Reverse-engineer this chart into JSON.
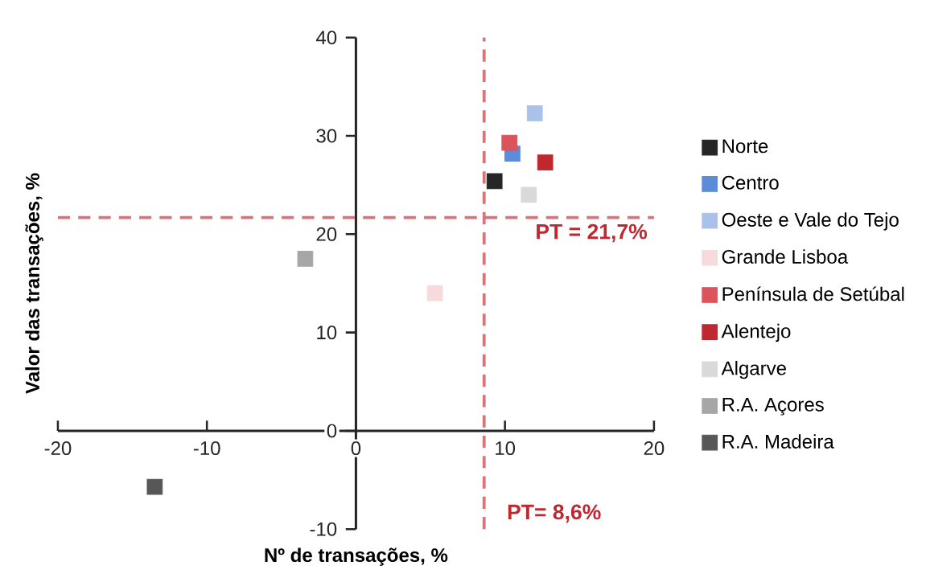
{
  "chart_data": {
    "type": "scatter",
    "xlabel": "Nº de transações, %",
    "ylabel": "Valor das transações, %",
    "xlim": [
      -20,
      20
    ],
    "xticks": [
      -20,
      -10,
      0,
      10,
      20
    ],
    "ylim": [
      -10,
      40
    ],
    "yticks": [
      -10,
      0,
      10,
      20,
      30,
      40
    ],
    "marker": "square",
    "grid": false,
    "legend": "right",
    "series": [
      {
        "name": "Norte",
        "color": "#262626",
        "x": [
          9.3
        ],
        "values": [
          25.4
        ]
      },
      {
        "name": "Centro",
        "color": "#5b8bd9",
        "x": [
          10.5
        ],
        "values": [
          28.2
        ]
      },
      {
        "name": "Oeste e Vale do Tejo",
        "color": "#aac1ea",
        "x": [
          12.0
        ],
        "values": [
          32.3
        ]
      },
      {
        "name": "Grande Lisboa",
        "color": "#f7dadc",
        "x": [
          5.3
        ],
        "values": [
          14.0
        ]
      },
      {
        "name": "Península de Setúbal",
        "color": "#db545c",
        "x": [
          10.3
        ],
        "values": [
          29.3
        ]
      },
      {
        "name": "Alentejo",
        "color": "#c0282f",
        "x": [
          12.7
        ],
        "values": [
          27.3
        ]
      },
      {
        "name": "Algarve",
        "color": "#d9d9d9",
        "x": [
          11.6
        ],
        "values": [
          24.0
        ]
      },
      {
        "name": "R.A. Açores",
        "color": "#a6a6a6",
        "x": [
          -3.4
        ],
        "values": [
          17.5
        ]
      },
      {
        "name": "R.A. Madeira",
        "color": "#575757",
        "x": [
          -13.5
        ],
        "values": [
          -5.7
        ]
      }
    ],
    "ref_lines": [
      {
        "axis": "y",
        "value": 21.7,
        "label": "PT = 21,7%",
        "color": "#d9747b",
        "line_style": "dashed"
      },
      {
        "axis": "x",
        "value": 8.6,
        "label": "PT= 8,6%",
        "color": "#d9747b",
        "line_style": "dashed"
      }
    ]
  }
}
